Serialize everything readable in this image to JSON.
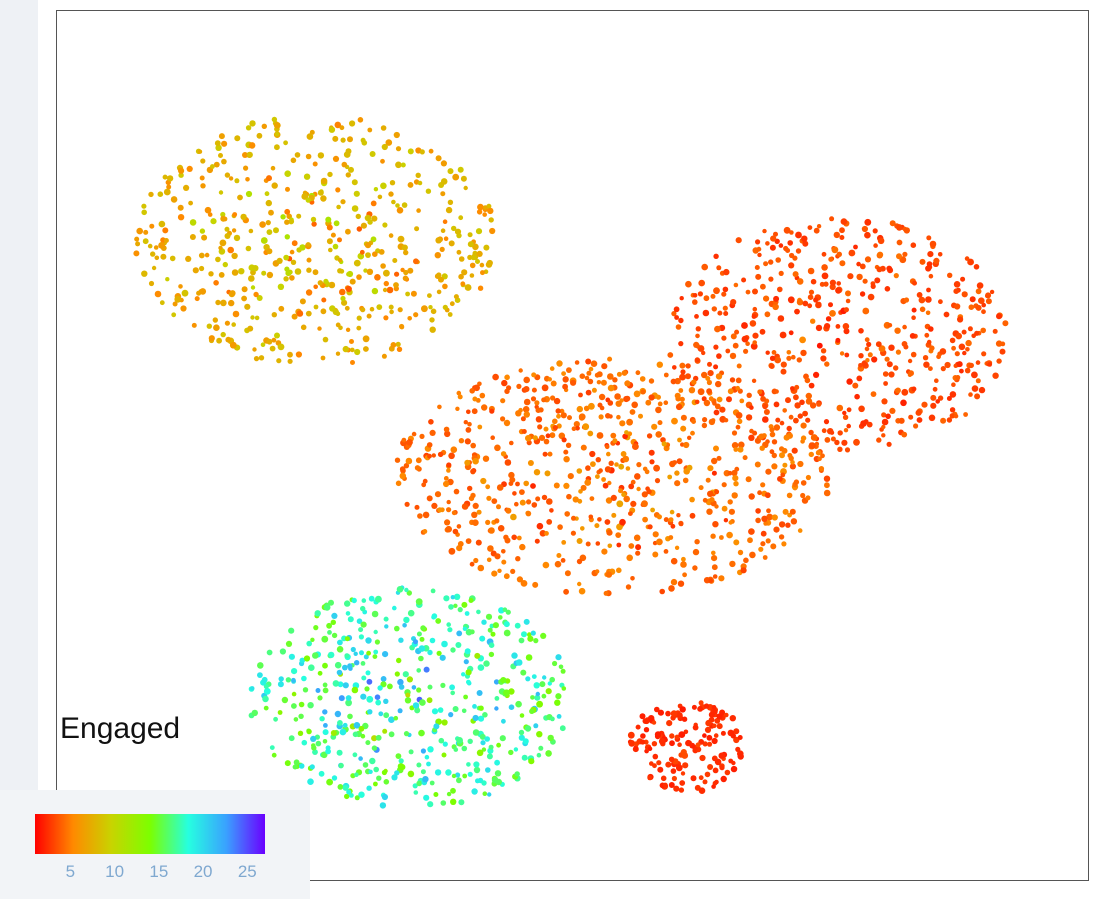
{
  "chart_data": {
    "type": "scatter",
    "panel_label": "Engaged",
    "color_scale": {
      "colors": [
        "#ff0000",
        "#ff8a00",
        "#c8d400",
        "#7cff00",
        "#26ffe0",
        "#3aa0ff",
        "#6a00ff"
      ],
      "domain": [
        1,
        27
      ],
      "ticks": [
        "5",
        "10",
        "15",
        "20",
        "25"
      ],
      "tick_values": [
        5,
        10,
        15,
        20,
        25
      ]
    },
    "axes": {
      "visible": false,
      "xlim": [
        0,
        1
      ],
      "ylim": [
        0,
        1
      ]
    },
    "clusters": [
      {
        "name": "upper-left lobe",
        "cx": 0.23,
        "cy": 0.76,
        "rx": 0.19,
        "ry": 0.16,
        "n": 520,
        "value_min": 2,
        "value_max": 13
      },
      {
        "name": "upper-right lobe",
        "cx": 0.78,
        "cy": 0.64,
        "rx": 0.18,
        "ry": 0.15,
        "n": 520,
        "value_min": 1,
        "value_max": 6
      },
      {
        "name": "center mass",
        "cx": 0.54,
        "cy": 0.46,
        "rx": 0.23,
        "ry": 0.15,
        "n": 720,
        "value_min": 1,
        "value_max": 8
      },
      {
        "name": "lower-left lobe",
        "cx": 0.33,
        "cy": 0.18,
        "rx": 0.17,
        "ry": 0.14,
        "n": 520,
        "value_min": 8,
        "value_max": 27
      },
      {
        "name": "bottom tail",
        "cx": 0.62,
        "cy": 0.12,
        "rx": 0.06,
        "ry": 0.06,
        "n": 160,
        "value_min": 1,
        "value_max": 4
      }
    ]
  }
}
